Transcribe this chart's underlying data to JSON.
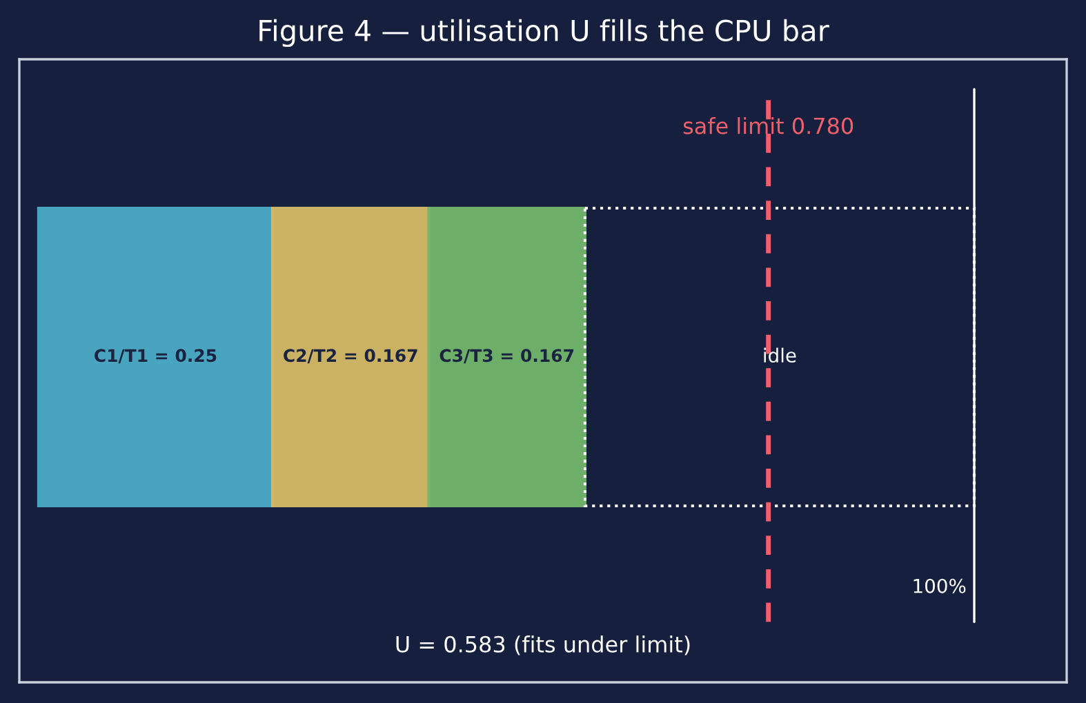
{
  "chart_data": {
    "type": "bar",
    "orientation": "horizontal",
    "stacked": true,
    "title": "Figure 4 — utilisation U fills the CPU bar",
    "categories": [
      null
    ],
    "xlim": [
      -0.0206,
      1.0988
    ],
    "grid": false,
    "series": [
      {
        "color": "#4bacc6",
        "values": [
          0.25
        ],
        "value_labels": [
          "C1/T1 = 0.25"
        ]
      },
      {
        "color": "#d4b966",
        "values": [
          0.167
        ],
        "value_labels": [
          "C2/T2 = 0.167"
        ]
      },
      {
        "color": "#72b66c",
        "values": [
          0.167
        ],
        "value_labels": [
          "C3/T3 = 0.167"
        ]
      },
      {
        "color": "#ffffff",
        "values": [
          0.416
        ],
        "value_labels": [
          "idle"
        ],
        "line_style": "dotted"
      }
    ],
    "ref_lines": [
      {
        "axis": "x",
        "value": 0.78,
        "label": "safe limit 0.780",
        "color": "#f0606a",
        "line_style": "dashed"
      },
      {
        "axis": "x",
        "value": 1.0,
        "label": "100%",
        "color": "#ffffff",
        "line_style": "solid"
      }
    ],
    "annotations": [
      "U = 0.583 (fits under limit)"
    ]
  }
}
